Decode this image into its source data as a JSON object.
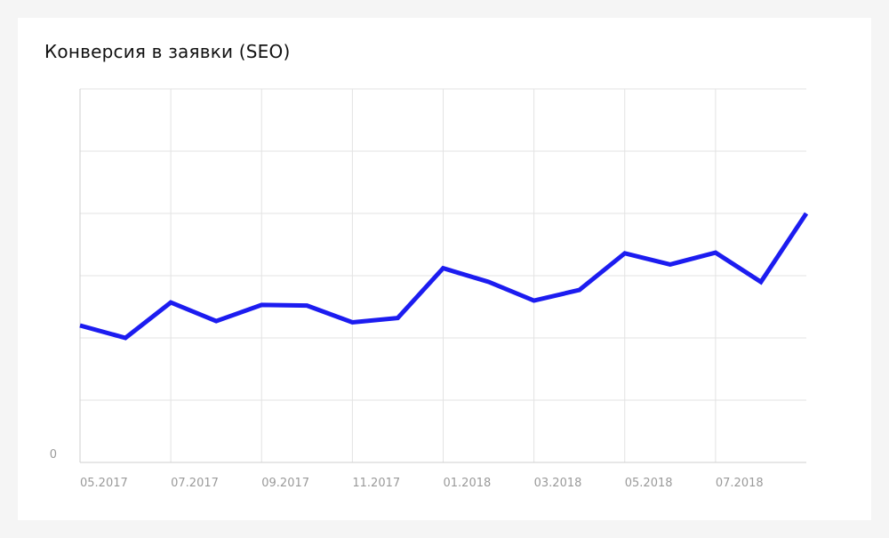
{
  "chart_data": {
    "type": "line",
    "title": "Конверсия в заявки (SEO)",
    "xlabel": "",
    "ylabel": "",
    "x_tick_labels": [
      "05.2017",
      "07.2017",
      "09.2017",
      "11.2017",
      "01.2018",
      "03.2018",
      "05.2018",
      "07.2018"
    ],
    "y_tick_labels": [
      "0"
    ],
    "ylim": [
      0,
      6
    ],
    "grid": true,
    "series": [
      {
        "name": "",
        "x": [
          "05.2017",
          "06.2017",
          "07.2017",
          "08.2017",
          "09.2017",
          "10.2017",
          "11.2017",
          "12.2017",
          "01.2018",
          "02.2018",
          "03.2018",
          "04.2018",
          "05.2018",
          "06.2018",
          "07.2018",
          "08.2018",
          "09.2018"
        ],
        "values": [
          2.2,
          2.0,
          2.57,
          2.27,
          2.53,
          2.52,
          2.25,
          2.32,
          3.12,
          2.9,
          2.6,
          2.77,
          3.36,
          3.18,
          3.37,
          2.9,
          4.0
        ]
      }
    ],
    "line_color": "#1c1cf0",
    "grid_color": "#e3e3e3",
    "axis_color": "#cfcfcf"
  }
}
